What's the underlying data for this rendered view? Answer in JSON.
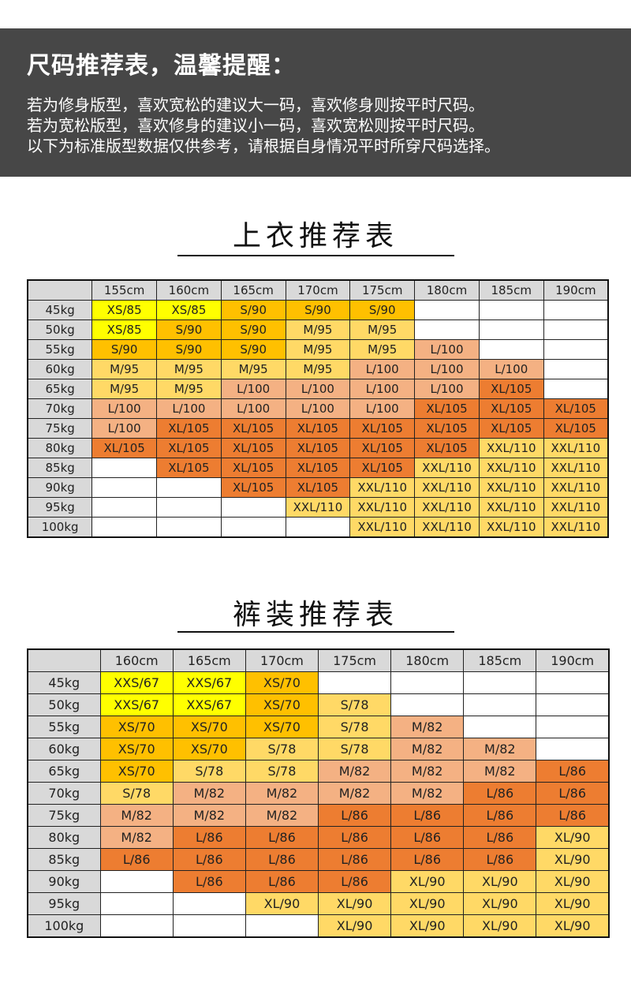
{
  "banner": {
    "title": "尺码推荐表，温馨提醒：",
    "lines": [
      "若为修身版型，喜欢宽松的建议大一码，喜欢修身则按平时尺码。",
      "若为宽松版型，喜欢修身的建议小一码，喜欢宽松则按平时尺码。",
      "以下为标准版型数据仅供参考，请根据自身情况平时所穿尺码选择。"
    ]
  },
  "colors": {
    "banner_bg": "#474747",
    "header_bg": "#d9d9d9",
    "XS_yellow": "#ffff00",
    "S_amber": "#ffc000",
    "M_lightyellow": "#ffd966",
    "L_salmon": "#f4b183",
    "XL_orange": "#ed7d31",
    "XXL_lightyellow": "#ffd966",
    "empty": "#ffffff"
  },
  "tops": {
    "title": "上衣推荐表",
    "columns": [
      "",
      "155cm",
      "160cm",
      "165cm",
      "170cm",
      "175cm",
      "180cm",
      "185cm",
      "190cm"
    ],
    "rows": [
      {
        "weight": "45kg",
        "cells": [
          "XS/85",
          "XS/85",
          "S/90",
          "S/90",
          "S/90",
          "",
          "",
          ""
        ]
      },
      {
        "weight": "50kg",
        "cells": [
          "XS/85",
          "S/90",
          "S/90",
          "M/95",
          "M/95",
          "",
          "",
          ""
        ]
      },
      {
        "weight": "55kg",
        "cells": [
          "S/90",
          "S/90",
          "S/90",
          "M/95",
          "M/95",
          "L/100",
          "",
          ""
        ]
      },
      {
        "weight": "60kg",
        "cells": [
          "M/95",
          "M/95",
          "M/95",
          "M/95",
          "L/100",
          "L/100",
          "L/100",
          ""
        ]
      },
      {
        "weight": "65kg",
        "cells": [
          "M/95",
          "M/95",
          "L/100",
          "L/100",
          "L/100",
          "L/100",
          "XL/105",
          ""
        ]
      },
      {
        "weight": "70kg",
        "cells": [
          "L/100",
          "L/100",
          "L/100",
          "L/100",
          "L/100",
          "XL/105",
          "XL/105",
          "XL/105"
        ]
      },
      {
        "weight": "75kg",
        "cells": [
          "L/100",
          "XL/105",
          "XL/105",
          "XL/105",
          "XL/105",
          "XL/105",
          "XL/105",
          "XL/105"
        ]
      },
      {
        "weight": "80kg",
        "cells": [
          "XL/105",
          "XL/105",
          "XL/105",
          "XL/105",
          "XL/105",
          "XL/105",
          "XXL/110",
          "XXL/110"
        ]
      },
      {
        "weight": "85kg",
        "cells": [
          "",
          "XL/105",
          "XL/105",
          "XL/105",
          "XL/105",
          "XXL/110",
          "XXL/110",
          "XXL/110"
        ]
      },
      {
        "weight": "90kg",
        "cells": [
          "",
          "",
          "XL/105",
          "XL/105",
          "XXL/110",
          "XXL/110",
          "XXL/110",
          "XXL/110"
        ]
      },
      {
        "weight": "95kg",
        "cells": [
          "",
          "",
          "",
          "XXL/110",
          "XXL/110",
          "XXL/110",
          "XXL/110",
          "XXL/110"
        ]
      },
      {
        "weight": "100kg",
        "cells": [
          "",
          "",
          "",
          "",
          "XXL/110",
          "XXL/110",
          "XXL/110",
          "XXL/110"
        ]
      }
    ]
  },
  "pants": {
    "title": "裤装推荐表",
    "columns": [
      "",
      "160cm",
      "165cm",
      "170cm",
      "175cm",
      "180cm",
      "185cm",
      "190cm"
    ],
    "rows": [
      {
        "weight": "45kg",
        "cells": [
          "XXS/67",
          "XXS/67",
          "XS/70",
          "",
          "",
          "",
          ""
        ]
      },
      {
        "weight": "50kg",
        "cells": [
          "XXS/67",
          "XXS/67",
          "XS/70",
          "S/78",
          "",
          "",
          ""
        ]
      },
      {
        "weight": "55kg",
        "cells": [
          "XS/70",
          "XS/70",
          "XS/70",
          "S/78",
          "M/82",
          "",
          ""
        ]
      },
      {
        "weight": "60kg",
        "cells": [
          "XS/70",
          "XS/70",
          "S/78",
          "S/78",
          "M/82",
          "M/82",
          ""
        ]
      },
      {
        "weight": "65kg",
        "cells": [
          "XS/70",
          "S/78",
          "S/78",
          "M/82",
          "M/82",
          "M/82",
          "L/86"
        ]
      },
      {
        "weight": "70kg",
        "cells": [
          "S/78",
          "M/82",
          "M/82",
          "M/82",
          "M/82",
          "L/86",
          "L/86"
        ]
      },
      {
        "weight": "75kg",
        "cells": [
          "M/82",
          "M/82",
          "M/82",
          "L/86",
          "L/86",
          "L/86",
          "L/86"
        ]
      },
      {
        "weight": "80kg",
        "cells": [
          "M/82",
          "L/86",
          "L/86",
          "L/86",
          "L/86",
          "L/86",
          "XL/90"
        ]
      },
      {
        "weight": "85kg",
        "cells": [
          "L/86",
          "L/86",
          "L/86",
          "L/86",
          "L/86",
          "L/86",
          "XL/90"
        ]
      },
      {
        "weight": "90kg",
        "cells": [
          "",
          "L/86",
          "L/86",
          "L/86",
          "XL/90",
          "XL/90",
          "XL/90"
        ]
      },
      {
        "weight": "95kg",
        "cells": [
          "",
          "",
          "XL/90",
          "XL/90",
          "XL/90",
          "XL/90",
          "XL/90"
        ]
      },
      {
        "weight": "100kg",
        "cells": [
          "",
          "",
          "",
          "XL/90",
          "XL/90",
          "XL/90",
          "XL/90"
        ]
      }
    ]
  }
}
